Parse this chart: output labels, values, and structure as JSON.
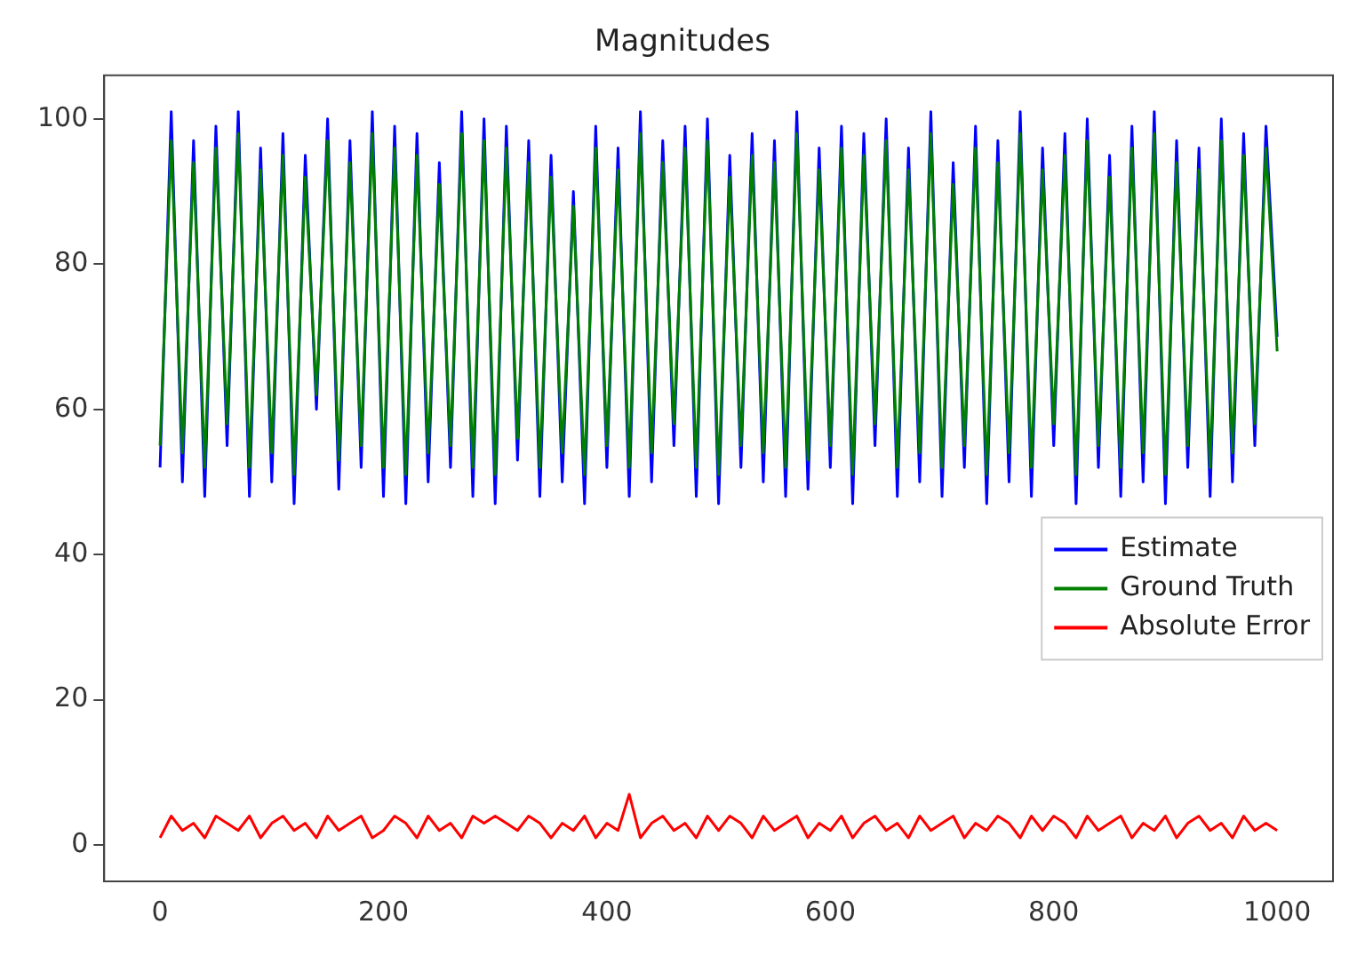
{
  "chart_data": {
    "type": "line",
    "title": "Magnitudes",
    "x": [
      0,
      10,
      20,
      30,
      40,
      50,
      60,
      70,
      80,
      90,
      100,
      110,
      120,
      130,
      140,
      150,
      160,
      170,
      180,
      190,
      200,
      210,
      220,
      230,
      240,
      250,
      260,
      270,
      280,
      290,
      300,
      310,
      320,
      330,
      340,
      350,
      360,
      370,
      380,
      390,
      400,
      410,
      420,
      430,
      440,
      450,
      460,
      470,
      480,
      490,
      500,
      510,
      520,
      530,
      540,
      550,
      560,
      570,
      580,
      590,
      600,
      610,
      620,
      630,
      640,
      650,
      660,
      670,
      680,
      690,
      700,
      710,
      720,
      730,
      740,
      750,
      760,
      770,
      780,
      790,
      800,
      810,
      820,
      830,
      840,
      850,
      860,
      870,
      880,
      890,
      900,
      910,
      920,
      930,
      940,
      950,
      960,
      970,
      980,
      990,
      1000
    ],
    "series": [
      {
        "name": "Estimate",
        "color": "#0000ff",
        "values": [
          52,
          101,
          50,
          97,
          48,
          99,
          55,
          101,
          48,
          96,
          50,
          98,
          47,
          95,
          60,
          100,
          49,
          97,
          52,
          101,
          48,
          99,
          47,
          98,
          50,
          94,
          52,
          101,
          48,
          100,
          47,
          99,
          53,
          97,
          48,
          95,
          50,
          90,
          47,
          99,
          52,
          96,
          48,
          101,
          50,
          97,
          55,
          99,
          48,
          100,
          47,
          95,
          52,
          98,
          50,
          97,
          48,
          101,
          49,
          96,
          52,
          99,
          47,
          98,
          55,
          100,
          48,
          96,
          50,
          101,
          48,
          94,
          52,
          99,
          47,
          97,
          50,
          101,
          48,
          96,
          55,
          98,
          47,
          100,
          52,
          95,
          48,
          99,
          50,
          101,
          47,
          97,
          52,
          96,
          48,
          100,
          50,
          98,
          55,
          99,
          70
        ]
      },
      {
        "name": "Ground Truth",
        "color": "#008000",
        "values": [
          55,
          97,
          54,
          94,
          52,
          96,
          58,
          98,
          52,
          93,
          54,
          95,
          51,
          92,
          62,
          97,
          53,
          94,
          55,
          98,
          52,
          96,
          51,
          95,
          54,
          91,
          55,
          98,
          52,
          97,
          51,
          96,
          56,
          94,
          52,
          92,
          54,
          88,
          51,
          96,
          55,
          93,
          52,
          98,
          54,
          94,
          58,
          96,
          52,
          97,
          51,
          92,
          55,
          95,
          54,
          94,
          52,
          98,
          53,
          93,
          55,
          96,
          51,
          95,
          58,
          97,
          52,
          93,
          54,
          98,
          52,
          91,
          55,
          96,
          51,
          94,
          54,
          98,
          52,
          93,
          58,
          95,
          51,
          97,
          55,
          92,
          52,
          96,
          54,
          98,
          51,
          94,
          55,
          93,
          52,
          97,
          54,
          95,
          58,
          96,
          68
        ]
      },
      {
        "name": "Absolute Error",
        "color": "#ff0000",
        "values": [
          1,
          4,
          2,
          3,
          1,
          4,
          3,
          2,
          4,
          1,
          3,
          4,
          2,
          3,
          1,
          4,
          2,
          3,
          4,
          1,
          2,
          4,
          3,
          1,
          4,
          2,
          3,
          1,
          4,
          3,
          4,
          3,
          2,
          4,
          3,
          1,
          3,
          2,
          4,
          1,
          3,
          2,
          7,
          1,
          3,
          4,
          2,
          3,
          1,
          4,
          2,
          4,
          3,
          1,
          4,
          2,
          3,
          4,
          1,
          3,
          2,
          4,
          1,
          3,
          4,
          2,
          3,
          1,
          4,
          2,
          3,
          4,
          1,
          3,
          2,
          4,
          3,
          1,
          4,
          2,
          4,
          3,
          1,
          4,
          2,
          3,
          4,
          1,
          3,
          2,
          4,
          1,
          3,
          4,
          2,
          3,
          1,
          4,
          2,
          3,
          2
        ]
      }
    ],
    "xlim": [
      -50,
      1050
    ],
    "ylim": [
      -5,
      106
    ],
    "xticks": [
      0,
      200,
      400,
      600,
      800,
      1000
    ],
    "yticks": [
      0,
      20,
      40,
      60,
      80,
      100
    ],
    "grid": false,
    "legend": "center right",
    "marker": "none",
    "line_style": "solid"
  }
}
